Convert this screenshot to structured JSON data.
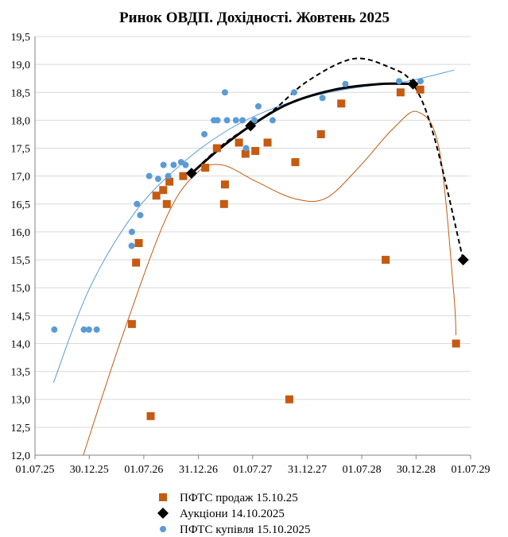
{
  "chart_data": {
    "type": "scatter",
    "title": "Ринок ОВДП. Дохідності.  Жовтень 2025",
    "xlabel": "",
    "ylabel": "",
    "x_tick_labels": [
      "01.07.25",
      "30.12.25",
      "01.07.26",
      "31.12.26",
      "01.07.27",
      "31.12.27",
      "01.07.28",
      "30.12.28",
      "01.07.29"
    ],
    "x_ticks": [
      "2025-07-01",
      "2025-12-30",
      "2026-07-01",
      "2026-12-31",
      "2027-07-01",
      "2027-12-31",
      "2028-07-01",
      "2028-12-30",
      "2029-07-01"
    ],
    "xlim": [
      "2025-07-01",
      "2029-07-01"
    ],
    "y_tick_labels": [
      "12,0",
      "12,5",
      "13,0",
      "13,5",
      "14,0",
      "14,5",
      "15,0",
      "15,5",
      "16,0",
      "16,5",
      "17,0",
      "17,5",
      "18,0",
      "18,5",
      "19,0",
      "19,5"
    ],
    "ylim": [
      12.0,
      19.5
    ],
    "grid": "horizontal",
    "legend_position": "bottom",
    "series": [
      {
        "name": "ПФТС продаж 15.10.25",
        "marker": "square",
        "color": "#C55A11",
        "points": [
          {
            "x": "2026-05-22",
            "y": 14.35
          },
          {
            "x": "2026-06-05",
            "y": 15.45
          },
          {
            "x": "2026-06-14",
            "y": 15.8
          },
          {
            "x": "2026-07-24",
            "y": 12.7
          },
          {
            "x": "2026-08-12",
            "y": 16.65
          },
          {
            "x": "2026-09-04",
            "y": 16.75
          },
          {
            "x": "2026-09-16",
            "y": 16.5
          },
          {
            "x": "2026-09-25",
            "y": 16.9
          },
          {
            "x": "2026-11-10",
            "y": 17.0
          },
          {
            "x": "2027-01-23",
            "y": 17.15
          },
          {
            "x": "2027-03-03",
            "y": 17.5
          },
          {
            "x": "2027-03-27",
            "y": 16.5
          },
          {
            "x": "2027-03-30",
            "y": 16.85
          },
          {
            "x": "2027-05-16",
            "y": 17.6
          },
          {
            "x": "2027-06-07",
            "y": 17.4
          },
          {
            "x": "2027-07-10",
            "y": 17.45
          },
          {
            "x": "2027-08-20",
            "y": 17.6
          },
          {
            "x": "2027-11-01",
            "y": 13.0
          },
          {
            "x": "2027-11-21",
            "y": 17.25
          },
          {
            "x": "2028-02-15",
            "y": 17.75
          },
          {
            "x": "2028-04-23",
            "y": 18.3
          },
          {
            "x": "2028-09-19",
            "y": 15.5
          },
          {
            "x": "2028-11-08",
            "y": 18.5
          },
          {
            "x": "2029-01-13",
            "y": 18.55
          },
          {
            "x": "2029-05-13",
            "y": 14.0
          }
        ]
      },
      {
        "name": "Аукціони 14.10.2025",
        "marker": "diamond",
        "color": "#000000",
        "points": [
          {
            "x": "2026-12-08",
            "y": 17.05
          },
          {
            "x": "2027-06-24",
            "y": 17.9
          },
          {
            "x": "2028-12-20",
            "y": 18.65
          },
          {
            "x": "2029-06-06",
            "y": 15.5
          }
        ]
      },
      {
        "name": "ПФТС купівля 15.10.2025",
        "marker": "circle",
        "color": "#5B9BD5",
        "points": [
          {
            "x": "2025-09-04",
            "y": 14.25
          },
          {
            "x": "2025-12-12",
            "y": 14.25
          },
          {
            "x": "2025-12-29",
            "y": 14.25
          },
          {
            "x": "2026-01-24",
            "y": 14.25
          },
          {
            "x": "2026-05-21",
            "y": 15.75
          },
          {
            "x": "2026-05-22",
            "y": 16.0
          },
          {
            "x": "2026-06-08",
            "y": 16.5
          },
          {
            "x": "2026-06-19",
            "y": 16.3
          },
          {
            "x": "2026-07-19",
            "y": 17.0
          },
          {
            "x": "2026-08-18",
            "y": 16.95
          },
          {
            "x": "2026-09-05",
            "y": 17.2
          },
          {
            "x": "2026-09-21",
            "y": 17.0
          },
          {
            "x": "2026-10-09",
            "y": 17.2
          },
          {
            "x": "2026-11-03",
            "y": 17.25
          },
          {
            "x": "2026-11-18",
            "y": 17.2
          },
          {
            "x": "2027-01-20",
            "y": 17.75
          },
          {
            "x": "2027-02-21",
            "y": 18.0
          },
          {
            "x": "2027-03-05",
            "y": 18.0
          },
          {
            "x": "2027-03-30",
            "y": 18.5
          },
          {
            "x": "2027-04-06",
            "y": 18.0
          },
          {
            "x": "2027-05-06",
            "y": 18.0
          },
          {
            "x": "2027-05-28",
            "y": 18.0
          },
          {
            "x": "2027-06-09",
            "y": 17.5
          },
          {
            "x": "2027-07-07",
            "y": 18.0
          },
          {
            "x": "2027-07-20",
            "y": 18.25
          },
          {
            "x": "2027-09-06",
            "y": 18.0
          },
          {
            "x": "2027-11-17",
            "y": 18.5
          },
          {
            "x": "2028-02-20",
            "y": 18.4
          },
          {
            "x": "2028-05-07",
            "y": 18.65
          },
          {
            "x": "2028-11-03",
            "y": 18.7
          },
          {
            "x": "2029-01-14",
            "y": 18.7
          }
        ]
      }
    ],
    "trendlines": [
      {
        "series": "ПФТС продаж 15.10.25",
        "style": "solid-thin",
        "color": "#C55A11",
        "points": [
          {
            "x": "2025-12-10",
            "y": 12.0
          },
          {
            "x": "2026-04-21",
            "y": 14.15
          },
          {
            "x": "2026-09-14",
            "y": 16.25
          },
          {
            "x": "2026-12-24",
            "y": 17.05
          },
          {
            "x": "2027-03-20",
            "y": 17.2
          },
          {
            "x": "2027-07-14",
            "y": 16.9
          },
          {
            "x": "2027-11-16",
            "y": 16.6
          },
          {
            "x": "2028-03-01",
            "y": 16.6
          },
          {
            "x": "2028-06-20",
            "y": 17.15
          },
          {
            "x": "2028-10-14",
            "y": 17.85
          },
          {
            "x": "2029-01-05",
            "y": 18.15
          },
          {
            "x": "2029-03-17",
            "y": 17.5
          },
          {
            "x": "2029-05-04",
            "y": 15.0
          },
          {
            "x": "2029-05-13",
            "y": 14.15
          }
        ]
      },
      {
        "series": "ПФТС купівля 15.10.2025",
        "style": "solid-thin",
        "color": "#5B9BD5",
        "points": [
          {
            "x": "2025-09-01",
            "y": 13.3
          },
          {
            "x": "2026-01-01",
            "y": 15.0
          },
          {
            "x": "2026-06-01",
            "y": 16.35
          },
          {
            "x": "2026-11-01",
            "y": 17.2
          },
          {
            "x": "2027-04-01",
            "y": 17.8
          },
          {
            "x": "2027-09-01",
            "y": 18.2
          },
          {
            "x": "2028-02-01",
            "y": 18.45
          },
          {
            "x": "2028-07-01",
            "y": 18.6
          },
          {
            "x": "2028-12-01",
            "y": 18.7
          },
          {
            "x": "2029-05-07",
            "y": 18.9
          }
        ]
      },
      {
        "series": "Аукціони 14.10.2025",
        "style": "dashed",
        "color": "#000000",
        "points": [
          {
            "x": "2026-12-08",
            "y": 17.05
          },
          {
            "x": "2027-04-01",
            "y": 17.6
          },
          {
            "x": "2027-09-01",
            "y": 18.15
          },
          {
            "x": "2028-01-01",
            "y": 18.7
          },
          {
            "x": "2028-06-01",
            "y": 19.1
          },
          {
            "x": "2028-10-01",
            "y": 18.95
          },
          {
            "x": "2028-12-20",
            "y": 18.65
          },
          {
            "x": "2029-03-01",
            "y": 17.7
          },
          {
            "x": "2029-06-06",
            "y": 15.5
          }
        ]
      },
      {
        "series": "Аукціони 14.10.2025",
        "style": "solid-thick",
        "color": "#000000",
        "points": [
          {
            "x": "2026-12-08",
            "y": 17.05
          },
          {
            "x": "2027-03-15",
            "y": 17.5
          },
          {
            "x": "2027-06-24",
            "y": 17.9
          },
          {
            "x": "2027-11-01",
            "y": 18.3
          },
          {
            "x": "2028-04-01",
            "y": 18.55
          },
          {
            "x": "2028-09-01",
            "y": 18.65
          },
          {
            "x": "2028-12-20",
            "y": 18.65
          }
        ]
      }
    ]
  }
}
